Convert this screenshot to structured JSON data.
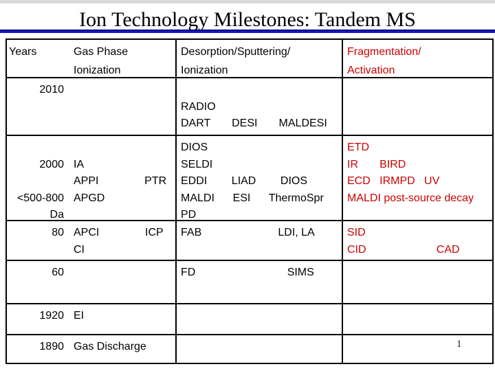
{
  "slide": {
    "title": "Ion Technology Milestones: Tandem MS",
    "page_number": "1"
  },
  "colors": {
    "accent_red": "#cc0000",
    "rule_top_navy": "#00006e",
    "rule_bottom_blue": "#1414cf",
    "table_border": "#000000",
    "top_strip_gray": "#d9d9d9"
  },
  "table": {
    "header": {
      "years": "Years",
      "gas_phase": [
        "Gas Phase",
        "Ionization"
      ],
      "desorption": [
        "Desorption/Sputtering/",
        "Ionization"
      ],
      "fragmentation": [
        "Fragmentation/",
        "Activation"
      ]
    },
    "rows": [
      {
        "id": "2010",
        "years": [
          "2010"
        ],
        "gas_phase": [],
        "desorption": [
          "",
          "RADIO",
          "DART       DESI       MALDESI"
        ],
        "fragmentation": []
      },
      {
        "id": "2000",
        "years": [
          "",
          "2000",
          "",
          "<500-800",
          "Da"
        ],
        "gas_phase": [
          "",
          "IA",
          "APPI               PTR",
          "APGD"
        ],
        "desorption": [
          "DIOS",
          "SELDI",
          "EDDI        LIAD        DIOS",
          "MALDI      ESI      ThermoSpr",
          "PD"
        ],
        "fragmentation": [
          "ETD",
          "IR       BIRD",
          "ECD   IRMPD   UV",
          "MALDI post-source decay"
        ]
      },
      {
        "id": "80",
        "years": [
          "80"
        ],
        "gas_phase": [
          "APCI               ICP",
          "CI"
        ],
        "desorption": [
          "FAB                         LDI, LA"
        ],
        "fragmentation": [
          "SID",
          "CID                       CAD"
        ]
      },
      {
        "id": "60",
        "years": [
          "60"
        ],
        "gas_phase": [],
        "desorption": [
          "FD                              SIMS"
        ],
        "fragmentation": []
      },
      {
        "id": "1920",
        "years": [
          "1920"
        ],
        "gas_phase": [
          "EI"
        ],
        "desorption": [],
        "fragmentation": []
      },
      {
        "id": "1890",
        "years": [
          "1890"
        ],
        "gas_phase": [
          "Gas Discharge"
        ],
        "desorption": [],
        "fragmentation": []
      }
    ]
  }
}
